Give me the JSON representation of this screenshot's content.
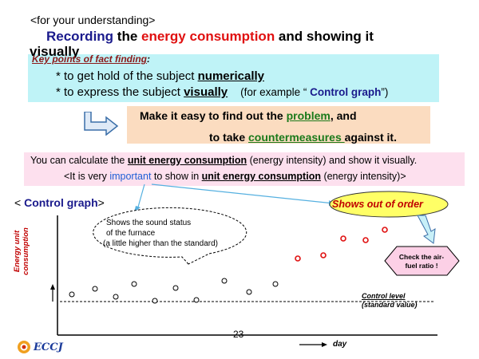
{
  "header": {
    "intro": "<for your understanding>",
    "title_part1": "Recording",
    "title_part2": " the ",
    "title_part3": "energy consumption",
    "title_part4": " and showing it",
    "title_wrap": "visually"
  },
  "key_points": {
    "label": "Key points of fact finding",
    "colon": ":",
    "b1_pre": "* to get hold of the subject ",
    "b1_em": "numerically",
    "b2_pre": "* to express the subject ",
    "b2_em": "visually",
    "b2_note_pre": "(for example “ ",
    "b2_note_em": "Control graph",
    "b2_note_post": "”)"
  },
  "make_easy": {
    "l1_pre": "Make it easy to find out the ",
    "l1_em": "problem",
    "l1_post": ", and",
    "l2_pre": "to take ",
    "l2_em": "countermeasures ",
    "l2_post": "against it."
  },
  "unit_energy": {
    "l1_pre": "You can calculate the ",
    "l1_em": "unit energy consumption",
    "l1_post": " (energy intensity) and show it visually.",
    "l2_pre": "<It is very ",
    "l2_imp": "important",
    "l2_mid": " to show in ",
    "l2_em": "unit energy consumption",
    "l2_post": " (energy intensity)>"
  },
  "graph": {
    "heading_pre": "< ",
    "heading": "Control graph",
    "heading_post": ">",
    "ylabel_line1": "Energy unit",
    "ylabel_line2": "consumption",
    "xlabel": "day",
    "callout_line1": "Shows the sound status",
    "callout_line2": "of the furnace",
    "callout_line3": "(a little higher than the standard)",
    "out_of_order": "Shows out of order",
    "check_line1": "Check the air-",
    "check_line2": "fuel ratio !",
    "control_level_line1": "Control level",
    "control_level_line2": "(standard value)"
  },
  "footer": {
    "page_number": "23",
    "logo": "ECCJ"
  },
  "colors": {
    "title_blue": "#1a1a8c",
    "title_red": "#e01010",
    "cyan_box": "#bff3f7",
    "peach_box": "#fbdcc0",
    "pink_box": "#fde0ee",
    "callout_yellow": "#ffff66",
    "hexagon_pink": "#fcd0e6",
    "point_red": "#e01010"
  }
}
